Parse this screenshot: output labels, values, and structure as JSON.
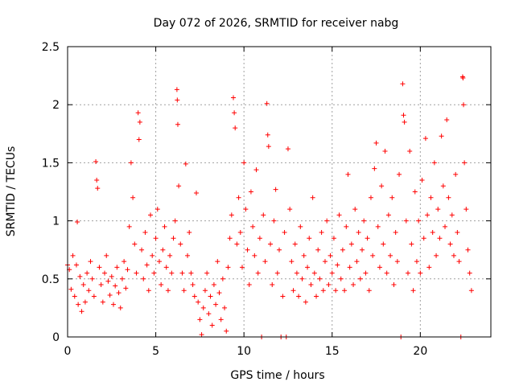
{
  "chart_data": {
    "type": "scatter",
    "title": "Day 072 of 2026, SRMTID for receiver nabg",
    "xlabel": "GPS time / hours",
    "ylabel": "SRMTID / TECUs",
    "xlim": [
      0,
      24
    ],
    "ylim": [
      0,
      2.5
    ],
    "xticks": [
      0,
      5,
      10,
      15,
      20
    ],
    "yticks": [
      0,
      0.5,
      1,
      1.5,
      2,
      2.5
    ],
    "xtick_labels": [
      "0",
      "5",
      "10",
      "15",
      "20"
    ],
    "ytick_labels": [
      "0",
      "0.5",
      "1",
      "1.5",
      "2",
      "2.5"
    ],
    "grid": true,
    "marker": "+",
    "series_color": "#ff0000",
    "series": [
      {
        "name": "SRMTID",
        "points": [
          [
            0.0,
            0.62
          ],
          [
            0.1,
            0.58
          ],
          [
            0.2,
            0.41
          ],
          [
            0.3,
            0.7
          ],
          [
            0.4,
            0.35
          ],
          [
            0.5,
            0.62
          ],
          [
            0.55,
            0.99
          ],
          [
            0.6,
            0.28
          ],
          [
            0.7,
            0.52
          ],
          [
            0.8,
            0.22
          ],
          [
            0.9,
            0.45
          ],
          [
            1.0,
            0.3
          ],
          [
            1.1,
            0.55
          ],
          [
            1.2,
            0.4
          ],
          [
            1.3,
            0.65
          ],
          [
            1.4,
            0.5
          ],
          [
            1.5,
            0.35
          ],
          [
            1.6,
            1.51
          ],
          [
            1.65,
            1.35
          ],
          [
            1.7,
            1.28
          ],
          [
            1.8,
            0.6
          ],
          [
            1.9,
            0.45
          ],
          [
            2.0,
            0.3
          ],
          [
            2.1,
            0.55
          ],
          [
            2.2,
            0.7
          ],
          [
            2.3,
            0.48
          ],
          [
            2.4,
            0.36
          ],
          [
            2.5,
            0.52
          ],
          [
            2.6,
            0.28
          ],
          [
            2.7,
            0.44
          ],
          [
            2.8,
            0.6
          ],
          [
            2.9,
            0.38
          ],
          [
            3.0,
            0.25
          ],
          [
            3.1,
            0.5
          ],
          [
            3.2,
            0.65
          ],
          [
            3.3,
            0.42
          ],
          [
            3.4,
            0.58
          ],
          [
            3.5,
            0.95
          ],
          [
            3.6,
            1.5
          ],
          [
            3.7,
            1.2
          ],
          [
            3.8,
            0.8
          ],
          [
            3.9,
            0.55
          ],
          [
            4.0,
            1.93
          ],
          [
            4.05,
            1.7
          ],
          [
            4.1,
            1.85
          ],
          [
            4.2,
            0.75
          ],
          [
            4.3,
            0.5
          ],
          [
            4.4,
            0.9
          ],
          [
            4.5,
            0.62
          ],
          [
            4.6,
            0.4
          ],
          [
            4.7,
            1.05
          ],
          [
            4.8,
            0.7
          ],
          [
            4.9,
            0.55
          ],
          [
            5.0,
            0.85
          ],
          [
            5.1,
            1.1
          ],
          [
            5.2,
            0.65
          ],
          [
            5.3,
            0.45
          ],
          [
            5.4,
            0.75
          ],
          [
            5.5,
            0.95
          ],
          [
            5.6,
            0.6
          ],
          [
            5.7,
            0.4
          ],
          [
            5.8,
            0.7
          ],
          [
            5.9,
            0.55
          ],
          [
            6.0,
            0.85
          ],
          [
            6.1,
            1.0
          ],
          [
            6.2,
            2.13
          ],
          [
            6.22,
            2.04
          ],
          [
            6.25,
            1.83
          ],
          [
            6.3,
            1.3
          ],
          [
            6.4,
            0.8
          ],
          [
            6.5,
            0.55
          ],
          [
            6.6,
            0.4
          ],
          [
            6.7,
            1.49
          ],
          [
            6.8,
            0.7
          ],
          [
            6.9,
            0.9
          ],
          [
            7.0,
            0.55
          ],
          [
            7.1,
            0.45
          ],
          [
            7.2,
            0.35
          ],
          [
            7.3,
            1.24
          ],
          [
            7.4,
            0.3
          ],
          [
            7.5,
            0.15
          ],
          [
            7.6,
            0.02
          ],
          [
            7.7,
            0.25
          ],
          [
            7.8,
            0.4
          ],
          [
            7.9,
            0.55
          ],
          [
            8.0,
            0.2
          ],
          [
            8.1,
            0.35
          ],
          [
            8.2,
            0.1
          ],
          [
            8.3,
            0.45
          ],
          [
            8.4,
            0.28
          ],
          [
            8.5,
            0.65
          ],
          [
            8.6,
            0.38
          ],
          [
            8.7,
            0.15
          ],
          [
            8.8,
            0.5
          ],
          [
            8.9,
            0.25
          ],
          [
            9.0,
            0.05
          ],
          [
            9.1,
            0.6
          ],
          [
            9.2,
            0.85
          ],
          [
            9.3,
            1.05
          ],
          [
            9.4,
            2.06
          ],
          [
            9.45,
            1.93
          ],
          [
            9.5,
            1.8
          ],
          [
            9.6,
            0.8
          ],
          [
            9.7,
            1.2
          ],
          [
            9.8,
            0.9
          ],
          [
            9.9,
            0.6
          ],
          [
            10.0,
            1.5
          ],
          [
            10.1,
            1.1
          ],
          [
            10.2,
            0.75
          ],
          [
            10.3,
            0.45
          ],
          [
            10.4,
            1.25
          ],
          [
            10.5,
            0.95
          ],
          [
            10.6,
            0.7
          ],
          [
            10.7,
            1.44
          ],
          [
            10.8,
            0.55
          ],
          [
            10.9,
            0.85
          ],
          [
            11.0,
            0.0
          ],
          [
            11.1,
            1.05
          ],
          [
            11.2,
            0.65
          ],
          [
            11.3,
            2.01
          ],
          [
            11.35,
            1.74
          ],
          [
            11.4,
            1.64
          ],
          [
            11.5,
            0.8
          ],
          [
            11.6,
            0.45
          ],
          [
            11.7,
            1.0
          ],
          [
            11.8,
            1.27
          ],
          [
            11.9,
            0.55
          ],
          [
            12.0,
            0.75
          ],
          [
            12.1,
            0.0
          ],
          [
            12.2,
            0.35
          ],
          [
            12.3,
            0.9
          ],
          [
            12.4,
            0.0
          ],
          [
            12.5,
            1.62
          ],
          [
            12.6,
            1.1
          ],
          [
            12.7,
            0.65
          ],
          [
            12.8,
            0.4
          ],
          [
            12.9,
            0.8
          ],
          [
            13.0,
            0.55
          ],
          [
            13.1,
            0.35
          ],
          [
            13.2,
            0.95
          ],
          [
            13.3,
            0.5
          ],
          [
            13.4,
            0.7
          ],
          [
            13.5,
            0.3
          ],
          [
            13.6,
            0.6
          ],
          [
            13.7,
            0.85
          ],
          [
            13.8,
            0.45
          ],
          [
            13.9,
            1.2
          ],
          [
            14.0,
            0.55
          ],
          [
            14.1,
            0.35
          ],
          [
            14.2,
            0.75
          ],
          [
            14.3,
            0.5
          ],
          [
            14.4,
            0.9
          ],
          [
            14.5,
            0.4
          ],
          [
            14.6,
            0.65
          ],
          [
            14.7,
            1.0
          ],
          [
            14.8,
            0.45
          ],
          [
            14.9,
            0.7
          ],
          [
            15.0,
            0.55
          ],
          [
            15.1,
            0.85
          ],
          [
            15.2,
            0.4
          ],
          [
            15.3,
            0.62
          ],
          [
            15.4,
            1.05
          ],
          [
            15.5,
            0.5
          ],
          [
            15.6,
            0.75
          ],
          [
            15.7,
            0.4
          ],
          [
            15.8,
            0.95
          ],
          [
            15.9,
            1.4
          ],
          [
            16.0,
            0.6
          ],
          [
            16.1,
            0.8
          ],
          [
            16.2,
            0.45
          ],
          [
            16.3,
            1.1
          ],
          [
            16.4,
            0.65
          ],
          [
            16.5,
            0.9
          ],
          [
            16.6,
            0.5
          ],
          [
            16.7,
            0.75
          ],
          [
            16.8,
            1.0
          ],
          [
            16.9,
            0.55
          ],
          [
            17.0,
            0.85
          ],
          [
            17.1,
            0.4
          ],
          [
            17.2,
            1.2
          ],
          [
            17.3,
            0.7
          ],
          [
            17.4,
            1.45
          ],
          [
            17.5,
            1.67
          ],
          [
            17.6,
            0.95
          ],
          [
            17.7,
            0.6
          ],
          [
            17.8,
            1.3
          ],
          [
            17.9,
            0.8
          ],
          [
            18.0,
            1.6
          ],
          [
            18.1,
            0.55
          ],
          [
            18.2,
            1.05
          ],
          [
            18.3,
            0.7
          ],
          [
            18.4,
            1.2
          ],
          [
            18.5,
            0.45
          ],
          [
            18.6,
            0.9
          ],
          [
            18.7,
            0.65
          ],
          [
            18.8,
            1.4
          ],
          [
            18.9,
            0.0
          ],
          [
            19.0,
            2.18
          ],
          [
            19.05,
            1.91
          ],
          [
            19.1,
            1.85
          ],
          [
            19.2,
            1.0
          ],
          [
            19.3,
            0.55
          ],
          [
            19.4,
            1.6
          ],
          [
            19.5,
            0.8
          ],
          [
            19.6,
            0.4
          ],
          [
            19.7,
            1.25
          ],
          [
            19.8,
            0.65
          ],
          [
            19.9,
            1.0
          ],
          [
            20.0,
            0.55
          ],
          [
            20.1,
            1.35
          ],
          [
            20.2,
            0.85
          ],
          [
            20.3,
            1.71
          ],
          [
            20.4,
            1.05
          ],
          [
            20.5,
            0.6
          ],
          [
            20.6,
            1.2
          ],
          [
            20.7,
            0.9
          ],
          [
            20.8,
            1.5
          ],
          [
            20.9,
            0.7
          ],
          [
            21.0,
            1.1
          ],
          [
            21.1,
            0.85
          ],
          [
            21.2,
            1.73
          ],
          [
            21.3,
            1.3
          ],
          [
            21.4,
            0.95
          ],
          [
            21.5,
            1.87
          ],
          [
            21.6,
            1.2
          ],
          [
            21.7,
            0.8
          ],
          [
            21.8,
            1.05
          ],
          [
            21.9,
            0.7
          ],
          [
            22.0,
            1.4
          ],
          [
            22.1,
            0.9
          ],
          [
            22.2,
            0.65
          ],
          [
            22.3,
            0.0
          ],
          [
            22.4,
            2.24
          ],
          [
            22.42,
            2.23
          ],
          [
            22.45,
            2.0
          ],
          [
            22.5,
            1.5
          ],
          [
            22.6,
            1.1
          ],
          [
            22.7,
            0.75
          ],
          [
            22.8,
            0.55
          ],
          [
            22.9,
            0.4
          ]
        ]
      }
    ]
  }
}
